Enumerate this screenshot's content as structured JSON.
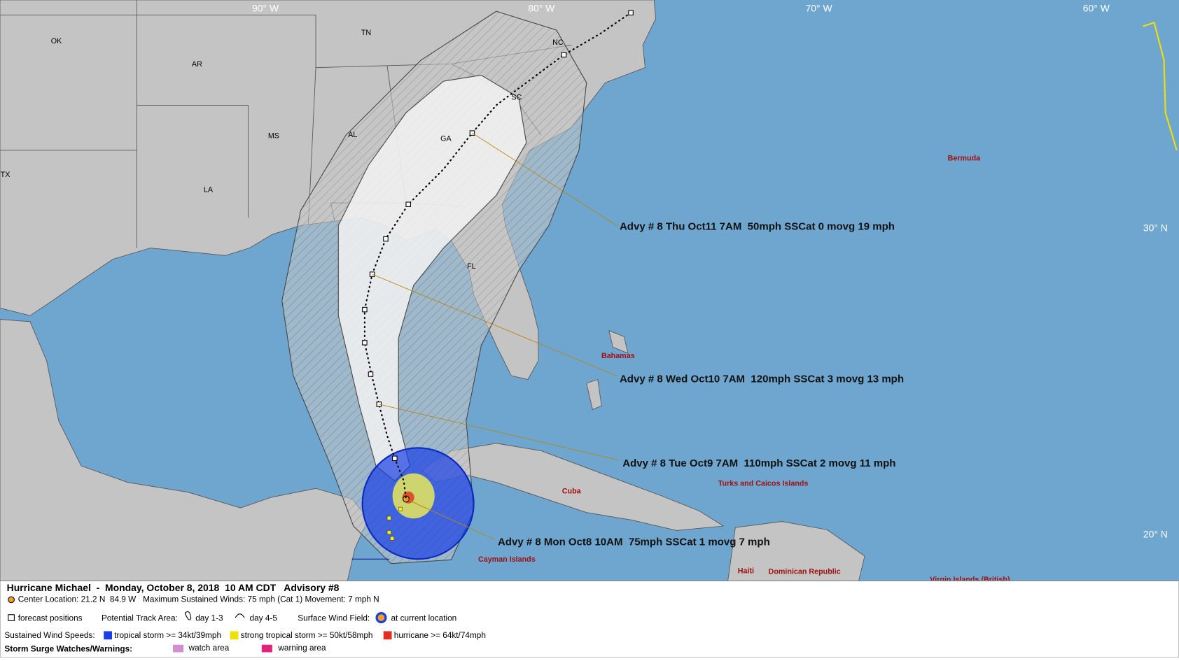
{
  "grid_labels": [
    "90° W",
    "80° W",
    "70° W",
    "60° W",
    "30° N",
    "20° N"
  ],
  "place_labels": [
    "OK",
    "TN",
    "NC",
    "AR",
    "SC",
    "GA",
    "MS",
    "AL",
    "TX",
    "LA",
    "FL"
  ],
  "region_labels": [
    "Bermuda",
    "Bahamas",
    "Cuba",
    "Turks and Caicos Islands",
    "Haiti",
    "Dominican Republic",
    "Cayman Islands",
    "Virgin Islands (British)"
  ],
  "advisories": [
    "Advy # 8 Thu Oct11 7AM  50mph SSCat 0 movg 19 mph",
    "Advy # 8 Wed Oct10 7AM  120mph SSCat 3 movg 13 mph",
    "Advy # 8 Tue Oct9 7AM  110mph SSCat 2 movg 11 mph",
    "Advy # 8 Mon Oct8 10AM  75mph SSCat 1 movg 7 mph"
  ],
  "footer": {
    "title": "Hurricane Michael  -  Monday, October 8, 2018  10 AM CDT   Advisory #8",
    "center": "Center Location: 21.2 N  84.9 W   Maximum Sustained Winds: 75 mph (Cat 1) Movement: 7 mph N",
    "forecast_positions": "forecast positions",
    "track_area": "Potential Track Area:",
    "day13": "day 1-3",
    "day45": "day 4-5",
    "wind_field": "Surface Wind Field:",
    "current": "at current location",
    "sustained": "Sustained Wind Speeds:",
    "ts": "tropical storm >= 34kt/39mph",
    "sts": "strong tropical storm >= 50kt/58mph",
    "hu": "hurricane >= 64kt/74mph",
    "surge": "Storm Surge Watches/Warnings:",
    "watch": "watch area",
    "warning": "warning area"
  }
}
